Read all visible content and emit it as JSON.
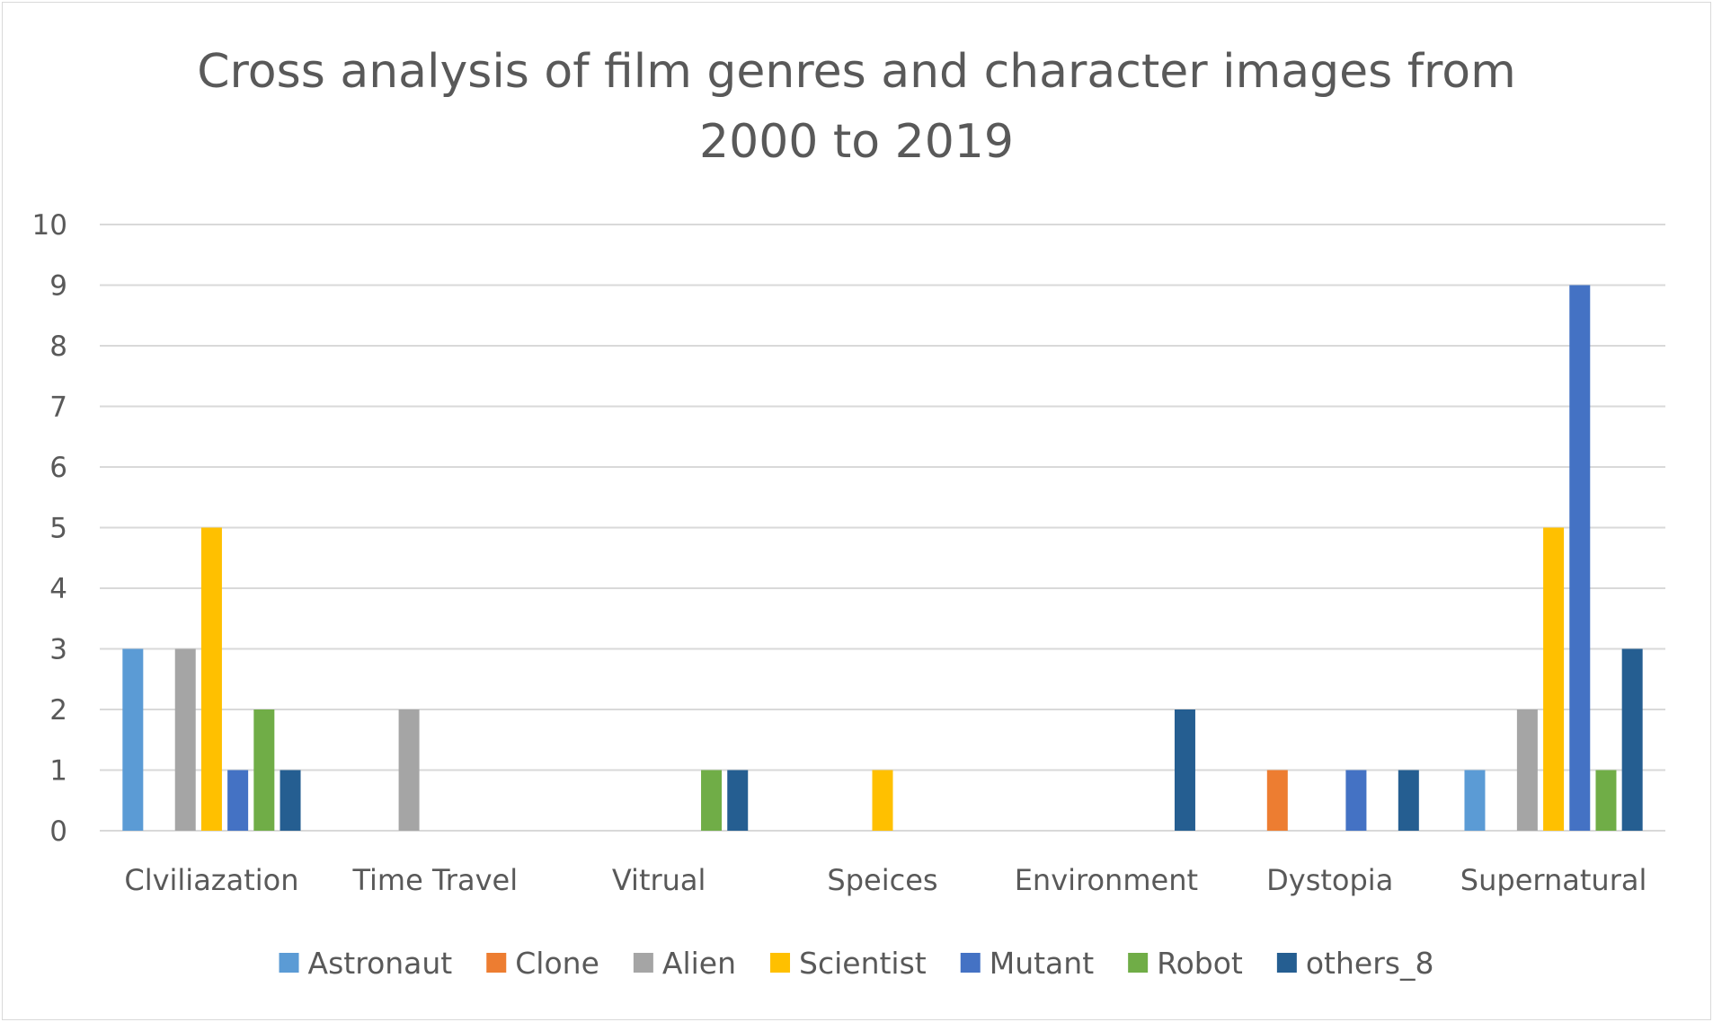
{
  "chart_data": {
    "type": "bar",
    "title_lines": [
      "Cross analysis of film genres and character images from",
      "2000 to 2019"
    ],
    "xlabel": "",
    "ylabel": "",
    "ylim": [
      0,
      10
    ],
    "yticks": [
      "0",
      "1",
      "2",
      "3",
      "4",
      "5",
      "6",
      "7",
      "8",
      "9",
      "10"
    ],
    "grid": "horizontal",
    "legend_position": "bottom",
    "categories": [
      "Clviliazation",
      "Time Travel",
      "Vitrual",
      "Speices",
      "Environment",
      "Dystopia",
      "Supernatural"
    ],
    "series": [
      {
        "name": "Astronaut",
        "color": "#5b9bd5",
        "values": [
          3,
          0,
          0,
          0,
          0,
          0,
          1
        ]
      },
      {
        "name": "Clone",
        "color": "#ed7d31",
        "values": [
          0,
          0,
          0,
          0,
          0,
          1,
          0
        ]
      },
      {
        "name": "Alien",
        "color": "#a5a5a5",
        "values": [
          3,
          2,
          0,
          0,
          0,
          0,
          2
        ]
      },
      {
        "name": "Scientist",
        "color": "#ffc000",
        "values": [
          5,
          0,
          0,
          1,
          0,
          0,
          5
        ]
      },
      {
        "name": "Mutant",
        "color": "#4472c4",
        "values": [
          1,
          0,
          0,
          0,
          0,
          1,
          9
        ]
      },
      {
        "name": "Robot",
        "color": "#70ad47",
        "values": [
          2,
          0,
          1,
          0,
          0,
          0,
          1
        ]
      },
      {
        "name": "others_8",
        "color": "#255e91",
        "values": [
          1,
          0,
          1,
          0,
          2,
          1,
          3
        ]
      }
    ]
  }
}
